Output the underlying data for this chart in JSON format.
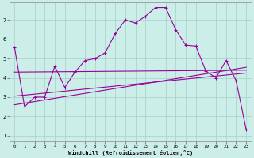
{
  "xlabel": "Windchill (Refroidissement éolien,°C)",
  "background_color": "#cceee8",
  "grid_color": "#aad4cc",
  "line_color": "#990099",
  "xlim": [
    -0.5,
    23.5
  ],
  "ylim": [
    0.7,
    7.9
  ],
  "xticks": [
    0,
    1,
    2,
    3,
    4,
    5,
    6,
    7,
    8,
    9,
    10,
    11,
    12,
    13,
    14,
    15,
    16,
    17,
    18,
    19,
    20,
    21,
    22,
    23
  ],
  "yticks": [
    1,
    2,
    3,
    4,
    5,
    6,
    7
  ],
  "series": {
    "main": {
      "x": [
        0,
        1,
        2,
        3,
        4,
        5,
        6,
        7,
        8,
        9,
        10,
        11,
        12,
        13,
        14,
        15,
        16,
        17,
        18,
        19,
        20,
        21,
        22,
        23
      ],
      "y": [
        5.6,
        2.5,
        3.0,
        3.0,
        4.6,
        3.5,
        4.3,
        4.9,
        5.0,
        5.3,
        6.3,
        7.0,
        6.85,
        7.2,
        7.65,
        7.65,
        6.5,
        5.7,
        5.65,
        4.35,
        4.0,
        4.9,
        3.85,
        1.3
      ]
    },
    "reg1": {
      "x": [
        0,
        23
      ],
      "y": [
        4.3,
        4.4
      ]
    },
    "reg2": {
      "x": [
        0,
        23
      ],
      "y": [
        3.05,
        4.25
      ]
    },
    "reg3": {
      "x": [
        0,
        23
      ],
      "y": [
        2.6,
        4.55
      ]
    }
  }
}
